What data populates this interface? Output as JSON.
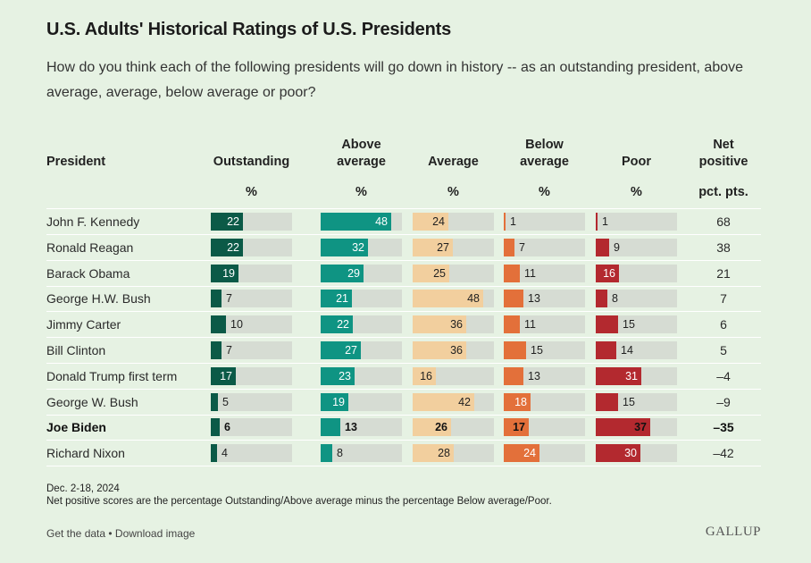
{
  "title": "U.S. Adults' Historical Ratings of U.S. Presidents",
  "subtitle": "How do you think each of the following presidents will go down in history -- as an outstanding president, above average, average, below average or poor?",
  "chart_data": {
    "type": "table",
    "columns": [
      {
        "key": "outstanding",
        "label_lines": [
          "Outstanding"
        ],
        "unit": "%",
        "color": "#0b5a47"
      },
      {
        "key": "above",
        "label_lines": [
          "Above",
          "average"
        ],
        "unit": "%",
        "color": "#0f9483"
      },
      {
        "key": "average",
        "label_lines": [
          "Average"
        ],
        "unit": "%",
        "color": "#f2cf9e"
      },
      {
        "key": "below",
        "label_lines": [
          "Below",
          "average"
        ],
        "unit": "%",
        "color": "#e3703a"
      },
      {
        "key": "poor",
        "label_lines": [
          "Poor"
        ],
        "unit": "%",
        "color": "#b3292f"
      }
    ],
    "name_header": "President",
    "net_header_lines": [
      "Net",
      "positive"
    ],
    "net_unit": "pct. pts.",
    "rows": [
      {
        "name": "John F. Kennedy",
        "values": [
          22,
          48,
          24,
          1,
          1
        ],
        "net": "68",
        "bold": false
      },
      {
        "name": "Ronald Reagan",
        "values": [
          22,
          32,
          27,
          7,
          9
        ],
        "net": "38",
        "bold": false
      },
      {
        "name": "Barack Obama",
        "values": [
          19,
          29,
          25,
          11,
          16
        ],
        "net": "21",
        "bold": false
      },
      {
        "name": "George H.W. Bush",
        "values": [
          7,
          21,
          48,
          13,
          8
        ],
        "net": "7",
        "bold": false
      },
      {
        "name": "Jimmy Carter",
        "values": [
          10,
          22,
          36,
          11,
          15
        ],
        "net": "6",
        "bold": false
      },
      {
        "name": "Bill Clinton",
        "values": [
          7,
          27,
          36,
          15,
          14
        ],
        "net": "5",
        "bold": false
      },
      {
        "name": "Donald Trump first term",
        "values": [
          17,
          23,
          16,
          13,
          31
        ],
        "net": "–4",
        "bold": false
      },
      {
        "name": "George W. Bush",
        "values": [
          5,
          19,
          42,
          18,
          15
        ],
        "net": "–9",
        "bold": false
      },
      {
        "name": "Joe Biden",
        "values": [
          6,
          13,
          26,
          17,
          37
        ],
        "net": "–35",
        "bold": true
      },
      {
        "name": "Richard Nixon",
        "values": [
          4,
          8,
          28,
          24,
          30
        ],
        "net": "–42",
        "bold": false
      }
    ],
    "scale_max": 55
  },
  "notes": {
    "date": "Dec. 2-18, 2024",
    "footnote": "Net positive scores are the percentage Outstanding/Above average minus the percentage Below average/Poor."
  },
  "footer": {
    "links": "Get the data • Download image",
    "logo": "GALLUP"
  }
}
